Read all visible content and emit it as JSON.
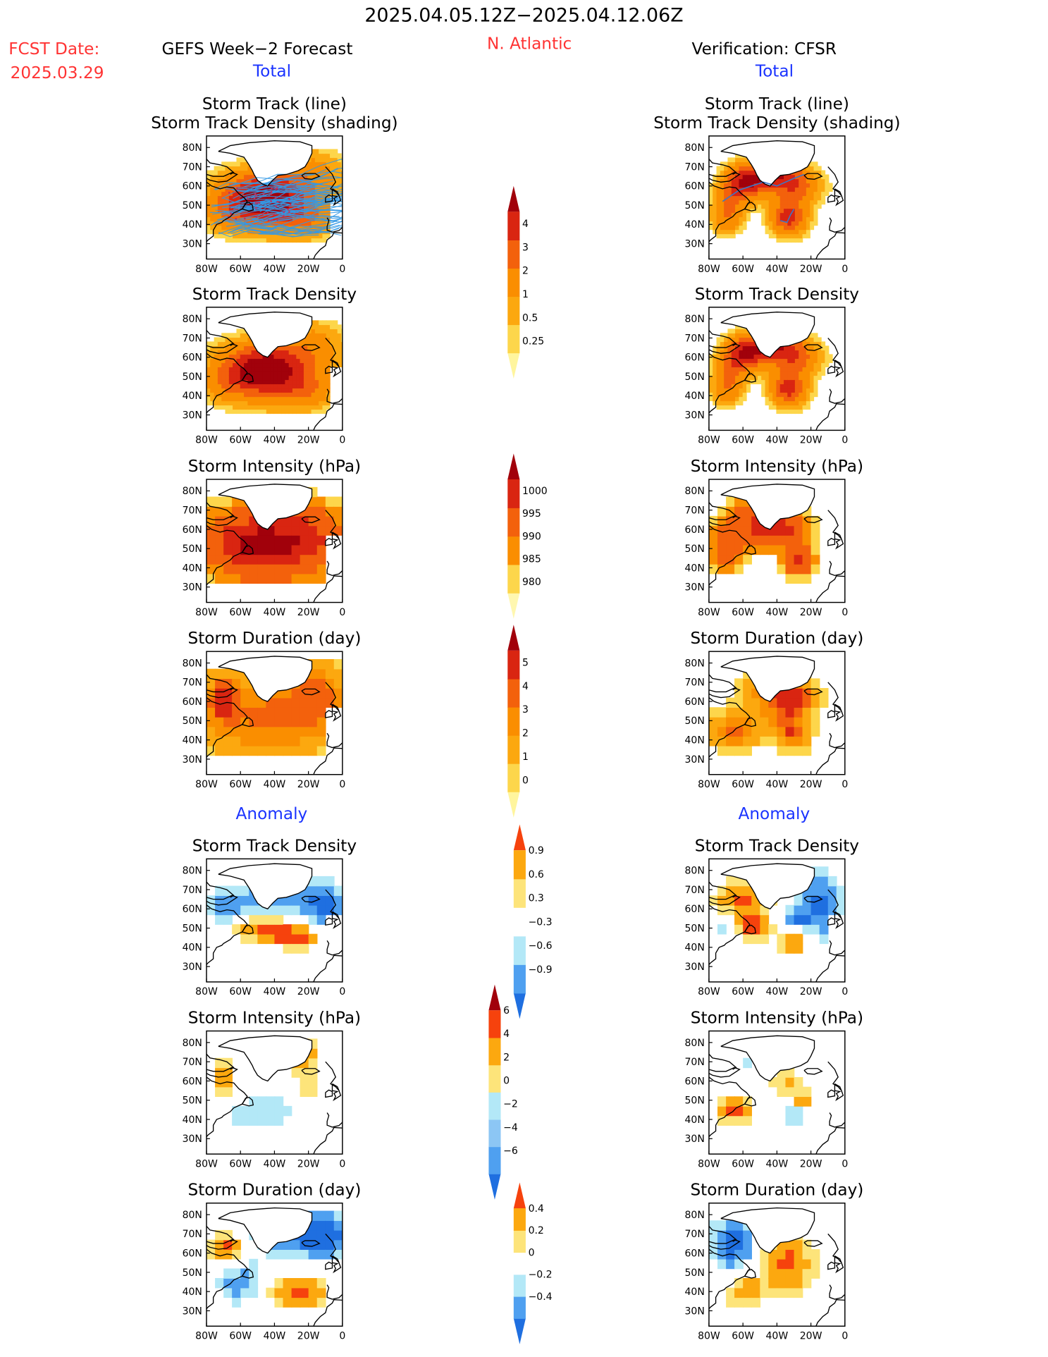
{
  "header": {
    "date_range": "2025.04.05.12Z−2025.04.12.06Z",
    "fcst_label": "FCST Date:",
    "fcst_date": "2025.03.29",
    "left_title": "GEFS Week−2 Forecast",
    "region": "N. Atlantic",
    "right_title": "Verification: CFSR",
    "left_total": "Total",
    "right_total": "Total",
    "left_anomaly": "Anomaly",
    "right_anomaly": "Anomaly"
  },
  "colors": {
    "date_red": "#ff3333",
    "title_blue": "#1a33ff",
    "positive_scale": [
      "#fff59e",
      "#fdd64b",
      "#fca80f",
      "#fa8e00",
      "#f3610c",
      "#d92511",
      "#a1010b"
    ],
    "intensity_scale": [
      "#a1010b",
      "#d92511",
      "#f3610c",
      "#fa8e00",
      "#fdd64b",
      "#fff7b0"
    ],
    "anomaly_scale": [
      "#1f6fe0",
      "#4fa0f0",
      "#b3e8f7",
      "#ffffff",
      "#fde47a",
      "#fca80f",
      "#f6420d"
    ]
  },
  "axis_ticks": {
    "lat": [
      "80N",
      "70N",
      "60N",
      "50N",
      "40N",
      "30N"
    ],
    "lon": [
      "80W",
      "60W",
      "40W",
      "20W",
      "0"
    ]
  },
  "chart_data": [
    {
      "id": "L1",
      "type": "heatmap",
      "title1": "Storm Track (line)",
      "title2": "Storm Track Density (shading)",
      "variable": "track_density_with_tracks",
      "tracks": "ensemble_many"
    },
    {
      "id": "R1",
      "type": "heatmap",
      "title1": "Storm Track (line)",
      "title2": "Storm Track Density (shading)",
      "variable": "track_density_with_tracks",
      "tracks": "single"
    },
    {
      "id": "L2",
      "type": "heatmap",
      "title1": "Storm Track Density",
      "variable": "track_density"
    },
    {
      "id": "R2",
      "type": "heatmap",
      "title1": "Storm Track Density",
      "variable": "track_density"
    },
    {
      "id": "L3",
      "type": "heatmap",
      "title1": "Storm Intensity (hPa)",
      "variable": "intensity"
    },
    {
      "id": "R3",
      "type": "heatmap",
      "title1": "Storm Intensity (hPa)",
      "variable": "intensity"
    },
    {
      "id": "L4",
      "type": "heatmap",
      "title1": "Storm Duration (day)",
      "variable": "duration"
    },
    {
      "id": "R4",
      "type": "heatmap",
      "title1": "Storm Duration (day)",
      "variable": "duration"
    },
    {
      "id": "L5",
      "type": "heatmap",
      "title1": "Storm Track Density",
      "variable": "density_anomaly"
    },
    {
      "id": "R5",
      "type": "heatmap",
      "title1": "Storm Track Density",
      "variable": "density_anomaly"
    },
    {
      "id": "L6",
      "type": "heatmap",
      "title1": "Storm Intensity (hPa)",
      "variable": "intensity_anomaly"
    },
    {
      "id": "R6",
      "type": "heatmap",
      "title1": "Storm Intensity (hPa)",
      "variable": "intensity_anomaly"
    },
    {
      "id": "L7",
      "type": "heatmap",
      "title1": "Storm Duration (day)",
      "variable": "duration_anomaly"
    },
    {
      "id": "R7",
      "type": "heatmap",
      "title1": "Storm Duration (day)",
      "variable": "duration_anomaly"
    }
  ],
  "colorbars": [
    {
      "id": "cb1",
      "labels": [
        "4",
        "3",
        "2",
        "1",
        "0.5",
        "0.25"
      ]
    },
    {
      "id": "cb2",
      "labels": [
        "1000",
        "995",
        "990",
        "985",
        "980"
      ]
    },
    {
      "id": "cb3",
      "labels": [
        "5",
        "4",
        "3",
        "2",
        "1",
        "0"
      ]
    },
    {
      "id": "cb4",
      "labels": [
        "0.9",
        "0.6",
        "0.3",
        "−0.3",
        "−0.6",
        "−0.9"
      ]
    },
    {
      "id": "cb5",
      "labels": [
        "6",
        "4",
        "2",
        "0",
        "−2",
        "−4",
        "−6"
      ]
    },
    {
      "id": "cb6",
      "labels": [
        "0.4",
        "0.2",
        "0",
        "−0.2",
        "−0.4"
      ]
    }
  ]
}
